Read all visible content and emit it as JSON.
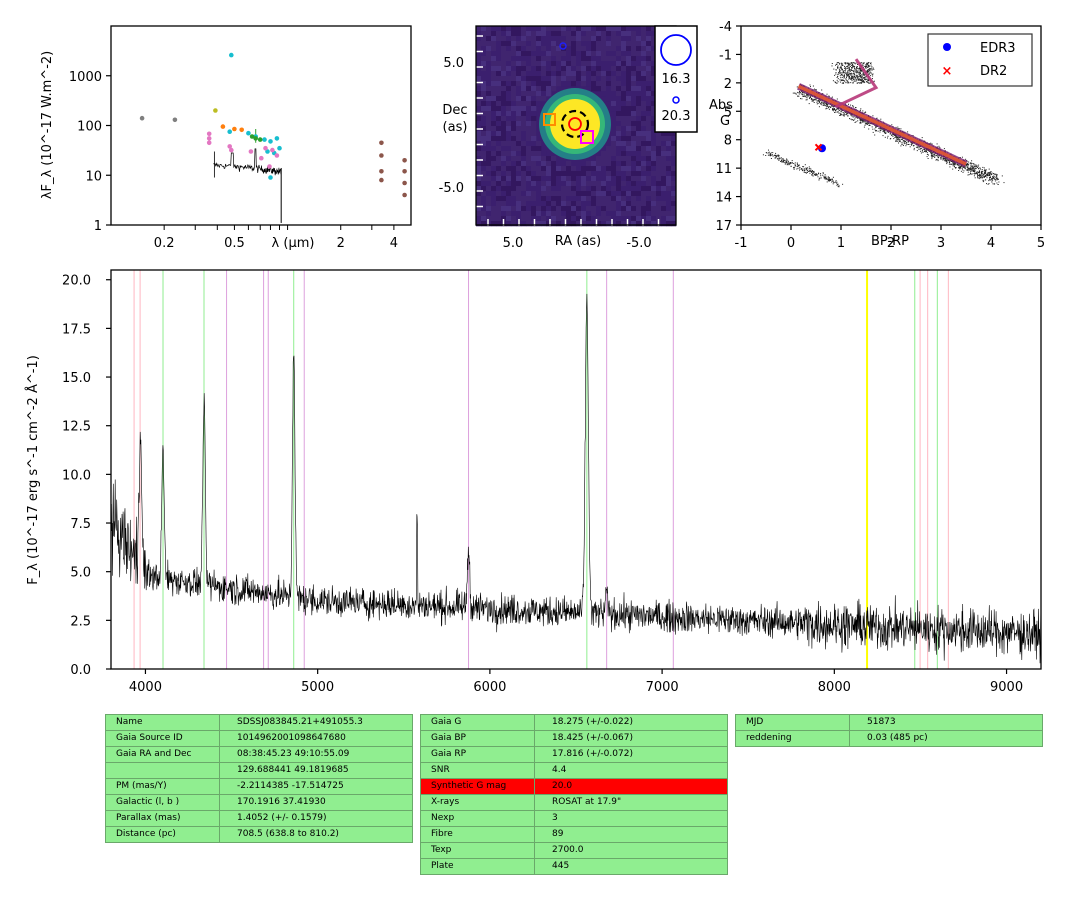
{
  "sed": {
    "ylabel": "λF_λ (10^-17 W.m^-2)",
    "xlabel": "λ (μm)",
    "yticks": [
      "1",
      "10",
      "100",
      "1000"
    ],
    "xticks": [
      "0.2",
      "0.5",
      "2",
      "4"
    ],
    "colors": {
      "grey": "#7f7f7f",
      "olive": "#bcbd22",
      "orange": "#ff7f0e",
      "green": "#2ca02c",
      "cyan": "#17becf",
      "pink": "#e377c2",
      "brown": "#8c564b"
    }
  },
  "image": {
    "ylabel": [
      "Dec",
      "(as)"
    ],
    "xlabel": "RA (as)",
    "yticks": [
      "5.0",
      "-5.0"
    ],
    "xticks": [
      "5.0",
      "-5.0"
    ],
    "legend": [
      "16.3",
      "20.3"
    ],
    "colors": {
      "background": "#3b1f6e",
      "source": "#fde725",
      "halo": "#35b779"
    }
  },
  "hrd": {
    "ylabel": [
      "Abs",
      "G"
    ],
    "xlabel": "BP-RP",
    "yticks": [
      "-4",
      "-1",
      "2",
      "5",
      "8",
      "11",
      "14",
      "17"
    ],
    "xticks": [
      "-1",
      "0",
      "1",
      "2",
      "3",
      "4",
      "5"
    ],
    "legend": [
      "EDR3",
      "DR2"
    ],
    "points": {
      "EDR3": [
        0.62,
        8.9
      ],
      "DR2": [
        0.55,
        8.8
      ]
    }
  },
  "chart_data": {
    "type": "line",
    "ylabel": "F_λ (10^-17 erg s^-1 cm^-2 Å^-1)",
    "xlim": [
      3800,
      9200
    ],
    "ylim": [
      0,
      20.5
    ],
    "xticks": [
      "4000",
      "5000",
      "6000",
      "7000",
      "8000",
      "9000"
    ],
    "yticks": [
      "0.0",
      "2.5",
      "5.0",
      "7.5",
      "10.0",
      "12.5",
      "15.0",
      "17.5",
      "20.0"
    ],
    "emission_lines": [
      {
        "x": 3934,
        "color": "#ffb6c1"
      },
      {
        "x": 3969,
        "color": "#ffb6c1"
      },
      {
        "x": 4102,
        "color": "#90ee90"
      },
      {
        "x": 4340,
        "color": "#90ee90"
      },
      {
        "x": 4471,
        "color": "#dda0dd"
      },
      {
        "x": 4686,
        "color": "#dda0dd"
      },
      {
        "x": 4713,
        "color": "#dda0dd"
      },
      {
        "x": 4861,
        "color": "#90ee90"
      },
      {
        "x": 4922,
        "color": "#dda0dd"
      },
      {
        "x": 5876,
        "color": "#dda0dd"
      },
      {
        "x": 6563,
        "color": "#90ee90"
      },
      {
        "x": 6678,
        "color": "#dda0dd"
      },
      {
        "x": 7065,
        "color": "#dda0dd"
      },
      {
        "x": 8190,
        "color": "#ffff00"
      },
      {
        "x": 8467,
        "color": "#90ee90"
      },
      {
        "x": 8498,
        "color": "#ffb6c1"
      },
      {
        "x": 8542,
        "color": "#ffb6c1"
      },
      {
        "x": 8598,
        "color": "#90ee90"
      },
      {
        "x": 8662,
        "color": "#ffb6c1"
      }
    ],
    "emission_peaks": [
      {
        "x": 3970,
        "height": 7.5
      },
      {
        "x": 4102,
        "height": 6.5
      },
      {
        "x": 4340,
        "height": 9.5
      },
      {
        "x": 4861,
        "height": 13.0
      },
      {
        "x": 5876,
        "height": 3.0
      },
      {
        "x": 6563,
        "height": 16.0
      },
      {
        "x": 6678,
        "height": 1.0
      }
    ]
  },
  "table1": [
    [
      "Name",
      "SDSSJ083845.21+491055.3"
    ],
    [
      "Gaia Source ID",
      "1014962001098647680"
    ],
    [
      "Gaia RA and Dec",
      "08:38:45.23    49:10:55.09"
    ],
    [
      "",
      "129.688441    49.1819685"
    ],
    [
      "PM (mas/Y)",
      "-2.2114385    -17.514725"
    ],
    [
      "Galactic (l, b )",
      "170.1916    37.41930"
    ],
    [
      "Parallax (mas)",
      "1.4052 (+/- 0.1579)"
    ],
    [
      "Distance (pc)",
      "708.5 (638.8 to 810.2)"
    ]
  ],
  "table2": [
    [
      "Gaia G",
      "18.275 (+/-0.022)"
    ],
    [
      "Gaia BP",
      "18.425 (+/-0.067)"
    ],
    [
      "Gaia RP",
      "17.816 (+/-0.072)"
    ],
    [
      "SNR",
      "4.4"
    ],
    [
      "Synthetic G mag",
      "20.0"
    ],
    [
      "X-rays",
      "ROSAT at 17.9\""
    ],
    [
      "Nexp",
      "3"
    ],
    [
      "Fibre",
      "89"
    ],
    [
      "Texp",
      "2700.0"
    ],
    [
      "Plate",
      "445"
    ]
  ],
  "table3": [
    [
      "MJD",
      "51873"
    ],
    [
      "reddening",
      "0.03 (485 pc)"
    ]
  ]
}
